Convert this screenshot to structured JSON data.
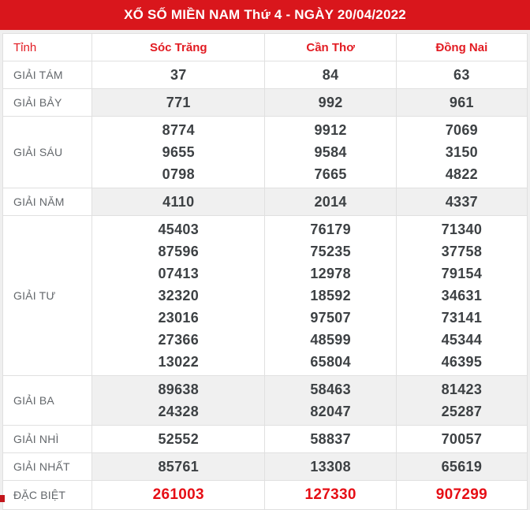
{
  "title": "XỔ SỐ MIỀN NAM Thứ 4 - NGÀY 20/04/2022",
  "colors": {
    "header_band_red": "#d9161c",
    "header_text_red": "#e21b22",
    "special_number_red": "#e60e15",
    "number_dark": "#3d4144",
    "label_gray": "#63676b",
    "shaded_row_bg": "#f0f0f0",
    "border_gray": "#e0e0e0",
    "page_bg": "#efefef"
  },
  "table": {
    "columns": [
      "Tỉnh",
      "Sóc Trăng",
      "Cần Thơ",
      "Đồng Nai"
    ],
    "rows": [
      {
        "label": "GIẢI TÁM",
        "shaded": false,
        "special": false,
        "values": [
          [
            "37"
          ],
          [
            "84"
          ],
          [
            "63"
          ]
        ]
      },
      {
        "label": "GIẢI BẢY",
        "shaded": true,
        "special": false,
        "values": [
          [
            "771"
          ],
          [
            "992"
          ],
          [
            "961"
          ]
        ]
      },
      {
        "label": "GIẢI SÁU",
        "shaded": false,
        "special": false,
        "values": [
          [
            "8774",
            "9655",
            "0798"
          ],
          [
            "9912",
            "9584",
            "7665"
          ],
          [
            "7069",
            "3150",
            "4822"
          ]
        ]
      },
      {
        "label": "GIẢI NĂM",
        "shaded": true,
        "special": false,
        "values": [
          [
            "4110"
          ],
          [
            "2014"
          ],
          [
            "4337"
          ]
        ]
      },
      {
        "label": "GIẢI TƯ",
        "shaded": false,
        "special": false,
        "values": [
          [
            "45403",
            "87596",
            "07413",
            "32320",
            "23016",
            "27366",
            "13022"
          ],
          [
            "76179",
            "75235",
            "12978",
            "18592",
            "97507",
            "48599",
            "65804"
          ],
          [
            "71340",
            "37758",
            "79154",
            "34631",
            "73141",
            "45344",
            "46395"
          ]
        ]
      },
      {
        "label": "GIẢI BA",
        "shaded": true,
        "special": false,
        "values": [
          [
            "89638",
            "24328"
          ],
          [
            "58463",
            "82047"
          ],
          [
            "81423",
            "25287"
          ]
        ]
      },
      {
        "label": "GIẢI NHÌ",
        "shaded": false,
        "special": false,
        "values": [
          [
            "52552"
          ],
          [
            "58837"
          ],
          [
            "70057"
          ]
        ]
      },
      {
        "label": "GIẢI NHẤT",
        "shaded": true,
        "special": false,
        "values": [
          [
            "85761"
          ],
          [
            "13308"
          ],
          [
            "65619"
          ]
        ]
      },
      {
        "label": "ĐẶC BIỆT",
        "shaded": false,
        "special": true,
        "values": [
          [
            "261003"
          ],
          [
            "127330"
          ],
          [
            "907299"
          ]
        ]
      }
    ]
  }
}
